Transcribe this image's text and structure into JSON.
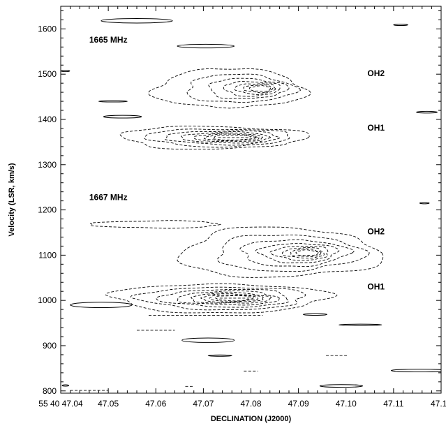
{
  "chart_data": {
    "type": "contour",
    "title": "",
    "xlabel": "DECLINATION (J2000)",
    "ylabel": "Velocity (LSR, km/s)",
    "xlim": [
      47.04,
      47.12
    ],
    "ylim": [
      795,
      1650
    ],
    "x_ticks": [
      47.04,
      47.05,
      47.06,
      47.07,
      47.08,
      47.09,
      47.1,
      47.11,
      47.12
    ],
    "x_tick_labels": [
      "55 40 47.04",
      "47.05",
      "47.06",
      "47.07",
      "47.08",
      "47.09",
      "47.10",
      "47.11",
      "47.12"
    ],
    "y_ticks": [
      800,
      900,
      1000,
      1100,
      1200,
      1300,
      1400,
      1500,
      1600
    ],
    "y_tick_labels": [
      "800",
      "900",
      "1000",
      "1100",
      "1200",
      "1300",
      "1400",
      "1500",
      "1600"
    ],
    "annotations": [
      {
        "text": "1665 MHz",
        "x": 47.046,
        "y": 1570
      },
      {
        "text": "OH2",
        "x": 47.1045,
        "y": 1496
      },
      {
        "text": "OH1",
        "x": 47.1045,
        "y": 1375
      },
      {
        "text": "1667 MHz",
        "x": 47.046,
        "y": 1222
      },
      {
        "text": "OH2",
        "x": 47.1045,
        "y": 1146
      },
      {
        "text": "OH1",
        "x": 47.1045,
        "y": 1024
      }
    ],
    "negative_contours_dashed": [
      {
        "cx": 47.0755,
        "cy": 1468,
        "rx": 0.0158,
        "ry": 43,
        "levels": 7,
        "shrink": 0.72,
        "shift": 0.0075
      },
      {
        "cx": 47.072,
        "cy": 1360,
        "rx": 0.0195,
        "ry": 25,
        "levels": 8,
        "shrink": 0.78,
        "shift": 0.0055
      },
      {
        "cx": 47.06,
        "cy": 1168,
        "rx": 0.0135,
        "ry": 8,
        "levels": 1,
        "shrink": 1,
        "shift": 0
      },
      {
        "cx": 47.086,
        "cy": 1105,
        "rx": 0.021,
        "ry": 55,
        "levels": 8,
        "shrink": 0.73,
        "shift": 0.0065
      },
      {
        "cx": 47.0735,
        "cy": 1005,
        "rx": 0.0225,
        "ry": 32,
        "levels": 9,
        "shrink": 0.78,
        "shift": 0.0035
      },
      {
        "cx": 47.0705,
        "cy": 967,
        "rx": 0.012,
        "ry": 2,
        "levels": 1,
        "shrink": 1,
        "shift": 0
      },
      {
        "cx": 47.06,
        "cy": 934,
        "rx": 0.004,
        "ry": 1.5,
        "levels": 1,
        "shrink": 1,
        "shift": 0
      },
      {
        "cx": 47.08,
        "cy": 844,
        "rx": 0.0015,
        "ry": 1.5,
        "levels": 1,
        "shrink": 1,
        "shift": 0
      },
      {
        "cx": 47.098,
        "cy": 878,
        "rx": 0.0022,
        "ry": 1.5,
        "levels": 1,
        "shrink": 1,
        "shift": 0
      },
      {
        "cx": 47.046,
        "cy": 801,
        "rx": 0.004,
        "ry": 1.5,
        "levels": 1,
        "shrink": 1,
        "shift": 0
      },
      {
        "cx": 47.067,
        "cy": 810,
        "rx": 0.0008,
        "ry": 1.5,
        "levels": 1,
        "shrink": 1,
        "shift": 0
      }
    ],
    "positive_contours_solid": [
      {
        "cx": 47.056,
        "cy": 1618,
        "rx": 0.0075,
        "ry": 5
      },
      {
        "cx": 47.0705,
        "cy": 1562,
        "rx": 0.006,
        "ry": 4
      },
      {
        "cx": 47.051,
        "cy": 1440,
        "rx": 0.003,
        "ry": 1.5
      },
      {
        "cx": 47.053,
        "cy": 1406,
        "rx": 0.004,
        "ry": 3
      },
      {
        "cx": 47.1115,
        "cy": 1609,
        "rx": 0.0015,
        "ry": 1.5
      },
      {
        "cx": 47.117,
        "cy": 1416,
        "rx": 0.0022,
        "ry": 2
      },
      {
        "cx": 47.1165,
        "cy": 1215,
        "rx": 0.001,
        "ry": 1.5
      },
      {
        "cx": 47.0485,
        "cy": 990,
        "rx": 0.0065,
        "ry": 6
      },
      {
        "cx": 47.071,
        "cy": 912,
        "rx": 0.0055,
        "ry": 5
      },
      {
        "cx": 47.0735,
        "cy": 878,
        "rx": 0.0025,
        "ry": 1.5
      },
      {
        "cx": 47.0935,
        "cy": 969,
        "rx": 0.0025,
        "ry": 2
      },
      {
        "cx": 47.103,
        "cy": 946,
        "rx": 0.0045,
        "ry": 1.5
      },
      {
        "cx": 47.099,
        "cy": 811,
        "rx": 0.0045,
        "ry": 3
      },
      {
        "cx": 47.1155,
        "cy": 845,
        "rx": 0.006,
        "ry": 3
      },
      {
        "cx": 47.041,
        "cy": 1507,
        "rx": 0.0009,
        "ry": 1.5
      },
      {
        "cx": 47.041,
        "cy": 812,
        "rx": 0.0007,
        "ry": 1.5
      }
    ]
  }
}
